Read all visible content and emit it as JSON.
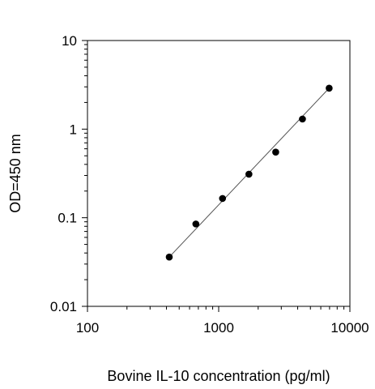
{
  "chart_data": {
    "type": "scatter",
    "title": "",
    "xlabel": "Bovine IL-10 concentration (pg/ml)",
    "ylabel": "OD=450 nm",
    "x_scale": "log",
    "y_scale": "log",
    "xlim": [
      100,
      10000
    ],
    "ylim": [
      0.01,
      10
    ],
    "x_ticks": [
      "100",
      "1000",
      "10000"
    ],
    "y_ticks": [
      "0.01",
      "0.1",
      "1",
      "10"
    ],
    "grid": false,
    "legend": "none",
    "points": [
      {
        "x": 420,
        "y": 0.036
      },
      {
        "x": 670,
        "y": 0.085
      },
      {
        "x": 1070,
        "y": 0.165
      },
      {
        "x": 1700,
        "y": 0.31
      },
      {
        "x": 2720,
        "y": 0.55
      },
      {
        "x": 4350,
        "y": 1.3
      },
      {
        "x": 6950,
        "y": 2.9
      }
    ],
    "fit_line": {
      "from": {
        "x": 420,
        "y": 0.036
      },
      "to": {
        "x": 6950,
        "y": 2.9
      }
    },
    "colors": {
      "marker": "#000000",
      "line": "#555555",
      "axis": "#000000"
    }
  }
}
